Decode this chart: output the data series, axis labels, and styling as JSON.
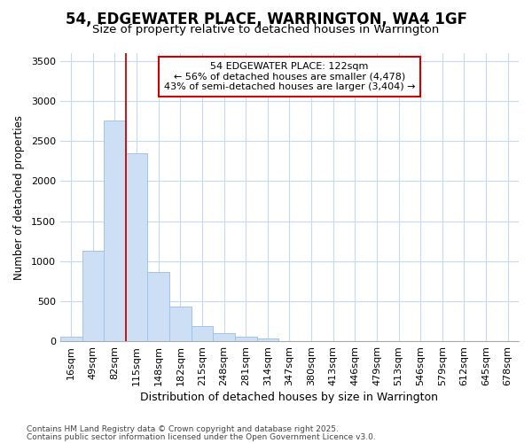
{
  "title_line1": "54, EDGEWATER PLACE, WARRINGTON, WA4 1GF",
  "title_line2": "Size of property relative to detached houses in Warrington",
  "xlabel": "Distribution of detached houses by size in Warrington",
  "ylabel": "Number of detached properties",
  "categories": [
    "16sqm",
    "49sqm",
    "82sqm",
    "115sqm",
    "148sqm",
    "182sqm",
    "215sqm",
    "248sqm",
    "281sqm",
    "314sqm",
    "347sqm",
    "380sqm",
    "413sqm",
    "446sqm",
    "479sqm",
    "513sqm",
    "546sqm",
    "579sqm",
    "612sqm",
    "645sqm",
    "678sqm"
  ],
  "values": [
    60,
    1130,
    2760,
    2350,
    870,
    430,
    185,
    100,
    60,
    30,
    5,
    3,
    1,
    0,
    0,
    0,
    0,
    0,
    0,
    0,
    0
  ],
  "bar_color": "#ccdff5",
  "bar_edgecolor": "#a0c4e8",
  "bar_linewidth": 0.7,
  "vline_x_index": 3,
  "vline_color": "#cc0000",
  "vline_linewidth": 1.3,
  "annotation_title": "54 EDGEWATER PLACE: 122sqm",
  "annotation_line2": "← 56% of detached houses are smaller (4,478)",
  "annotation_line3": "43% of semi-detached houses are larger (3,404) →",
  "ylim": [
    0,
    3600
  ],
  "yticks": [
    0,
    500,
    1000,
    1500,
    2000,
    2500,
    3000,
    3500
  ],
  "grid_color": "#c8d8f0",
  "plot_bg_color": "#ffffff",
  "fig_bg_color": "#ffffff",
  "footer_line1": "Contains HM Land Registry data © Crown copyright and database right 2025.",
  "footer_line2": "Contains public sector information licensed under the Open Government Licence v3.0.",
  "title_fontsize": 12,
  "subtitle_fontsize": 9.5,
  "xlabel_fontsize": 9,
  "ylabel_fontsize": 8.5,
  "tick_fontsize": 8,
  "ann_fontsize": 8,
  "footer_fontsize": 6.5
}
